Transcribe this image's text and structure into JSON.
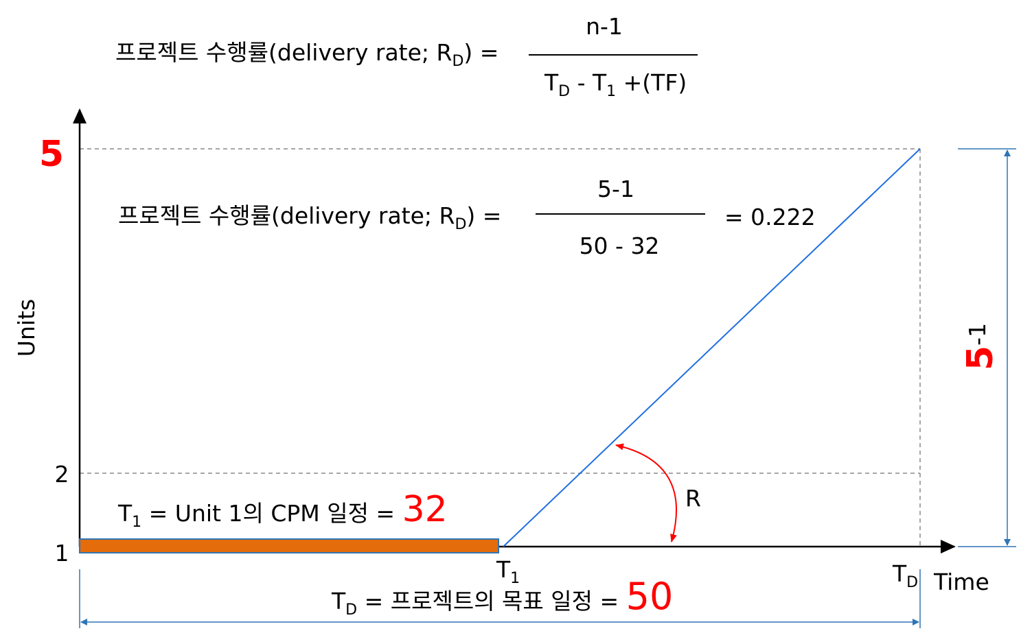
{
  "formula_general": {
    "lhs": "프로젝트 수행률(delivery rate; R",
    "lhs_sub": "D",
    "lhs_end": ") =",
    "numerator": "n-1",
    "denominator": {
      "t": "T",
      "t_sub": "D",
      "mid": " - T",
      "mid_sub": "1",
      "end": " +(TF)"
    }
  },
  "formula_example": {
    "lhs": "프로젝트 수행률(delivery rate; R",
    "lhs_sub": "D",
    "lhs_end": ") =",
    "numerator": "5-1",
    "denominator": "50 - 32",
    "result": "= 0.222"
  },
  "axes": {
    "y_label": "Units",
    "x_label": "Time",
    "y_ticks": [
      "5",
      "2",
      "1"
    ]
  },
  "markers": {
    "t1": {
      "base": "T",
      "sub": "1"
    },
    "td": {
      "base": "T",
      "sub": "D"
    }
  },
  "angle_label": "R",
  "t1_note": {
    "base": "T",
    "sub": "1",
    "text": " = Unit 1의 CPM 일정 = ",
    "value": "32"
  },
  "td_note": {
    "base": "T",
    "sub": "D",
    "text": " = 프로젝트의 목표 일정 = ",
    "value": "50"
  },
  "span_label": {
    "value": "5",
    "rest": "-1"
  }
}
